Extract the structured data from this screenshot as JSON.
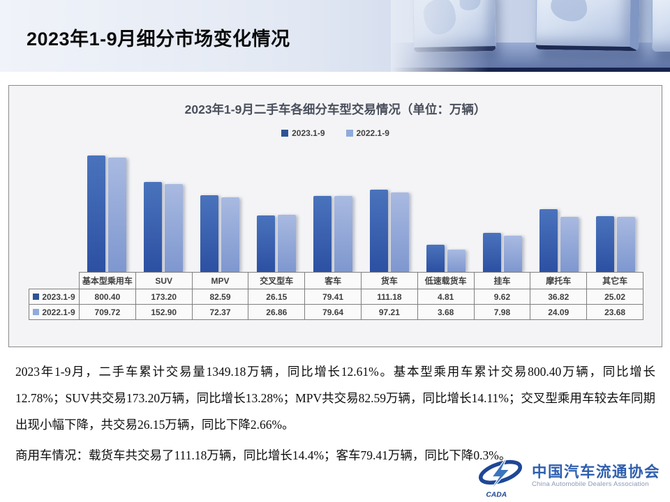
{
  "header": {
    "title": "2023年1-9月细分市场变化情况"
  },
  "chart_data": {
    "type": "bar",
    "title": "2023年1-9月二手车各细分车型交易情况（单位：万辆）",
    "categories": [
      "基本型乘用车",
      "SUV",
      "MPV",
      "交叉型车",
      "客车",
      "货车",
      "低速载货车",
      "挂车",
      "摩托车",
      "其它车"
    ],
    "series": [
      {
        "name": "2023.1-9",
        "values": [
          "800.40",
          "173.20",
          "82.59",
          "26.15",
          "79.41",
          "111.18",
          "4.81",
          "9.62",
          "36.82",
          "25.02"
        ],
        "key_color": "#2e5395",
        "color_top": "#4a73bc",
        "color_bottom": "#2c50a2"
      },
      {
        "name": "2022.1-9",
        "values": [
          "709.72",
          "152.90",
          "72.37",
          "26.86",
          "79.64",
          "97.21",
          "3.68",
          "7.98",
          "24.09",
          "23.68"
        ],
        "key_color": "#8faadc",
        "color_top": "#a9bae1",
        "color_bottom": "#7e97cf"
      }
    ],
    "values_unit": "万辆",
    "value_axis_hidden": true,
    "scale": "log10",
    "grid": false,
    "legend_position": "top",
    "data_table_shown": true
  },
  "paragraphs": [
    "2023年1-9月，二手车累计交易量1349.18万辆，同比增长12.61%。基本型乘用车累计交易800.40万辆，同比增长12.78%；SUV共交易173.20万辆，同比增长13.28%；MPV共交易82.59万辆，同比增长14.11%；交叉型乘用车较去年同期出现小幅下降，共交易26.15万辆，同比下降2.66%。",
    "商用车情况：载货车共交易了111.18万辆，同比增长14.4%；客车79.41万辆，同比下降0.3%。"
  ],
  "logo": {
    "acronym": "CADA",
    "name_cn": "中国汽车流通协会",
    "name_en": "China Automobile Dealers Association",
    "brand_color": "#2e5fae"
  }
}
